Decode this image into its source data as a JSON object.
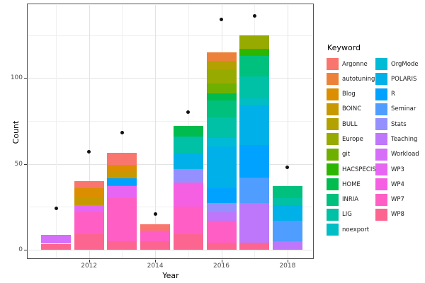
{
  "figure": {
    "xlabel": "Year",
    "ylabel": "Count",
    "legend_title": "Keyword"
  },
  "chart_data": {
    "type": "bar",
    "stacked": true,
    "title": "",
    "xlabel": "Year",
    "ylabel": "Count",
    "legend": {
      "title": "Keyword",
      "position": "right",
      "columns": 2,
      "column_split": 12
    },
    "grid": true,
    "x_major_ticks": [
      2012,
      2014,
      2016,
      2018
    ],
    "x_minor_years": [
      2011,
      2013,
      2015,
      2017
    ],
    "y_major_ticks": [
      0,
      50,
      100
    ],
    "y_minor_ticks": [
      25,
      75,
      125
    ],
    "xlim": [
      2010.2,
      2018.8
    ],
    "ylim": [
      0,
      140
    ],
    "keywords": [
      {
        "name": "Argonne",
        "color": "#F8766D"
      },
      {
        "name": "autotuning",
        "color": "#EC8239"
      },
      {
        "name": "Blog",
        "color": "#DB8E00"
      },
      {
        "name": "BOINC",
        "color": "#C79800"
      },
      {
        "name": "BULL",
        "color": "#B2A100"
      },
      {
        "name": "Europe",
        "color": "#97AA00"
      },
      {
        "name": "git",
        "color": "#6FAF00"
      },
      {
        "name": "HACSPECIS",
        "color": "#2CB600"
      },
      {
        "name": "HOME",
        "color": "#00BB4E"
      },
      {
        "name": "INRIA",
        "color": "#00C07D"
      },
      {
        "name": "LIG",
        "color": "#00C0A6"
      },
      {
        "name": "noexport",
        "color": "#00BEC4"
      },
      {
        "name": "OrgMode",
        "color": "#00BBD6"
      },
      {
        "name": "POLARIS",
        "color": "#00B0E8"
      },
      {
        "name": "R",
        "color": "#00A2FF"
      },
      {
        "name": "Seminar",
        "color": "#4F9DFF"
      },
      {
        "name": "Stats",
        "color": "#9590FF"
      },
      {
        "name": "Teaching",
        "color": "#BE76FB"
      },
      {
        "name": "Workload",
        "color": "#D56EF9"
      },
      {
        "name": "WP3",
        "color": "#E765F3"
      },
      {
        "name": "WP4",
        "color": "#F55FE1"
      },
      {
        "name": "WP7",
        "color": "#FF5EC4"
      },
      {
        "name": "WP8",
        "color": "#FC6590"
      }
    ],
    "bars": [
      {
        "year": 2011,
        "total": 8.5,
        "segments_bottom_up": [
          {
            "keyword": "WP8",
            "value": 3.5
          },
          {
            "keyword": "Workload",
            "value": 5
          }
        ]
      },
      {
        "year": 2012,
        "total": 40,
        "segments_bottom_up": [
          {
            "keyword": "WP8",
            "value": 9
          },
          {
            "keyword": "WP7",
            "value": 13
          },
          {
            "keyword": "WP3",
            "value": 4
          },
          {
            "keyword": "BOINC",
            "value": 4
          },
          {
            "keyword": "Blog",
            "value": 6
          },
          {
            "keyword": "Argonne",
            "value": 4
          }
        ]
      },
      {
        "year": 2013,
        "total": 56.5,
        "segments_bottom_up": [
          {
            "keyword": "WP8",
            "value": 5
          },
          {
            "keyword": "WP7",
            "value": 25
          },
          {
            "keyword": "WP3",
            "value": 7
          },
          {
            "keyword": "R",
            "value": 4.5
          },
          {
            "keyword": "BOINC",
            "value": 4
          },
          {
            "keyword": "Blog",
            "value": 4
          },
          {
            "keyword": "Argonne",
            "value": 7
          }
        ]
      },
      {
        "year": 2014,
        "total": 15,
        "segments_bottom_up": [
          {
            "keyword": "WP8",
            "value": 5
          },
          {
            "keyword": "WP7",
            "value": 6
          },
          {
            "keyword": "Argonne",
            "value": 4
          }
        ]
      },
      {
        "year": 2015,
        "total": 72,
        "segments_bottom_up": [
          {
            "keyword": "WP8",
            "value": 9
          },
          {
            "keyword": "WP7",
            "value": 16
          },
          {
            "keyword": "WP4",
            "value": 14
          },
          {
            "keyword": "Stats",
            "value": 8
          },
          {
            "keyword": "POLARIS",
            "value": 9
          },
          {
            "keyword": "LIG",
            "value": 10
          },
          {
            "keyword": "HOME",
            "value": 6
          }
        ]
      },
      {
        "year": 2016,
        "total": 115,
        "segments_bottom_up": [
          {
            "keyword": "WP8",
            "value": 4
          },
          {
            "keyword": "WP7",
            "value": 13
          },
          {
            "keyword": "Teaching",
            "value": 5
          },
          {
            "keyword": "Stats",
            "value": 5
          },
          {
            "keyword": "R",
            "value": 9
          },
          {
            "keyword": "POLARIS",
            "value": 24
          },
          {
            "keyword": "OrgMode",
            "value": 5
          },
          {
            "keyword": "LIG",
            "value": 12
          },
          {
            "keyword": "INRIA",
            "value": 10
          },
          {
            "keyword": "HOME",
            "value": 4
          },
          {
            "keyword": "git",
            "value": 6
          },
          {
            "keyword": "Europe",
            "value": 8
          },
          {
            "keyword": "BULL",
            "value": 5
          },
          {
            "keyword": "autotuning",
            "value": 5
          }
        ]
      },
      {
        "year": 2017,
        "total": 125,
        "segments_bottom_up": [
          {
            "keyword": "WP8",
            "value": 4
          },
          {
            "keyword": "Teaching",
            "value": 23
          },
          {
            "keyword": "Seminar",
            "value": 15
          },
          {
            "keyword": "R",
            "value": 19
          },
          {
            "keyword": "POLARIS",
            "value": 23
          },
          {
            "keyword": "noexport",
            "value": 4
          },
          {
            "keyword": "LIG",
            "value": 13
          },
          {
            "keyword": "INRIA",
            "value": 12
          },
          {
            "keyword": "HACSPECIS",
            "value": 4
          },
          {
            "keyword": "Europe",
            "value": 8
          }
        ]
      },
      {
        "year": 2018,
        "total": 37,
        "segments_bottom_up": [
          {
            "keyword": "Teaching",
            "value": 5
          },
          {
            "keyword": "Seminar",
            "value": 12
          },
          {
            "keyword": "POLARIS",
            "value": 9
          },
          {
            "keyword": "LIG",
            "value": 4
          },
          {
            "keyword": "INRIA",
            "value": 7
          }
        ]
      }
    ],
    "points": [
      {
        "year": 2011,
        "value": 24
      },
      {
        "year": 2012,
        "value": 57
      },
      {
        "year": 2013,
        "value": 68
      },
      {
        "year": 2014,
        "value": 21
      },
      {
        "year": 2015,
        "value": 80
      },
      {
        "year": 2016,
        "value": 134
      },
      {
        "year": 2017,
        "value": 136
      },
      {
        "year": 2018,
        "value": 48
      }
    ]
  }
}
